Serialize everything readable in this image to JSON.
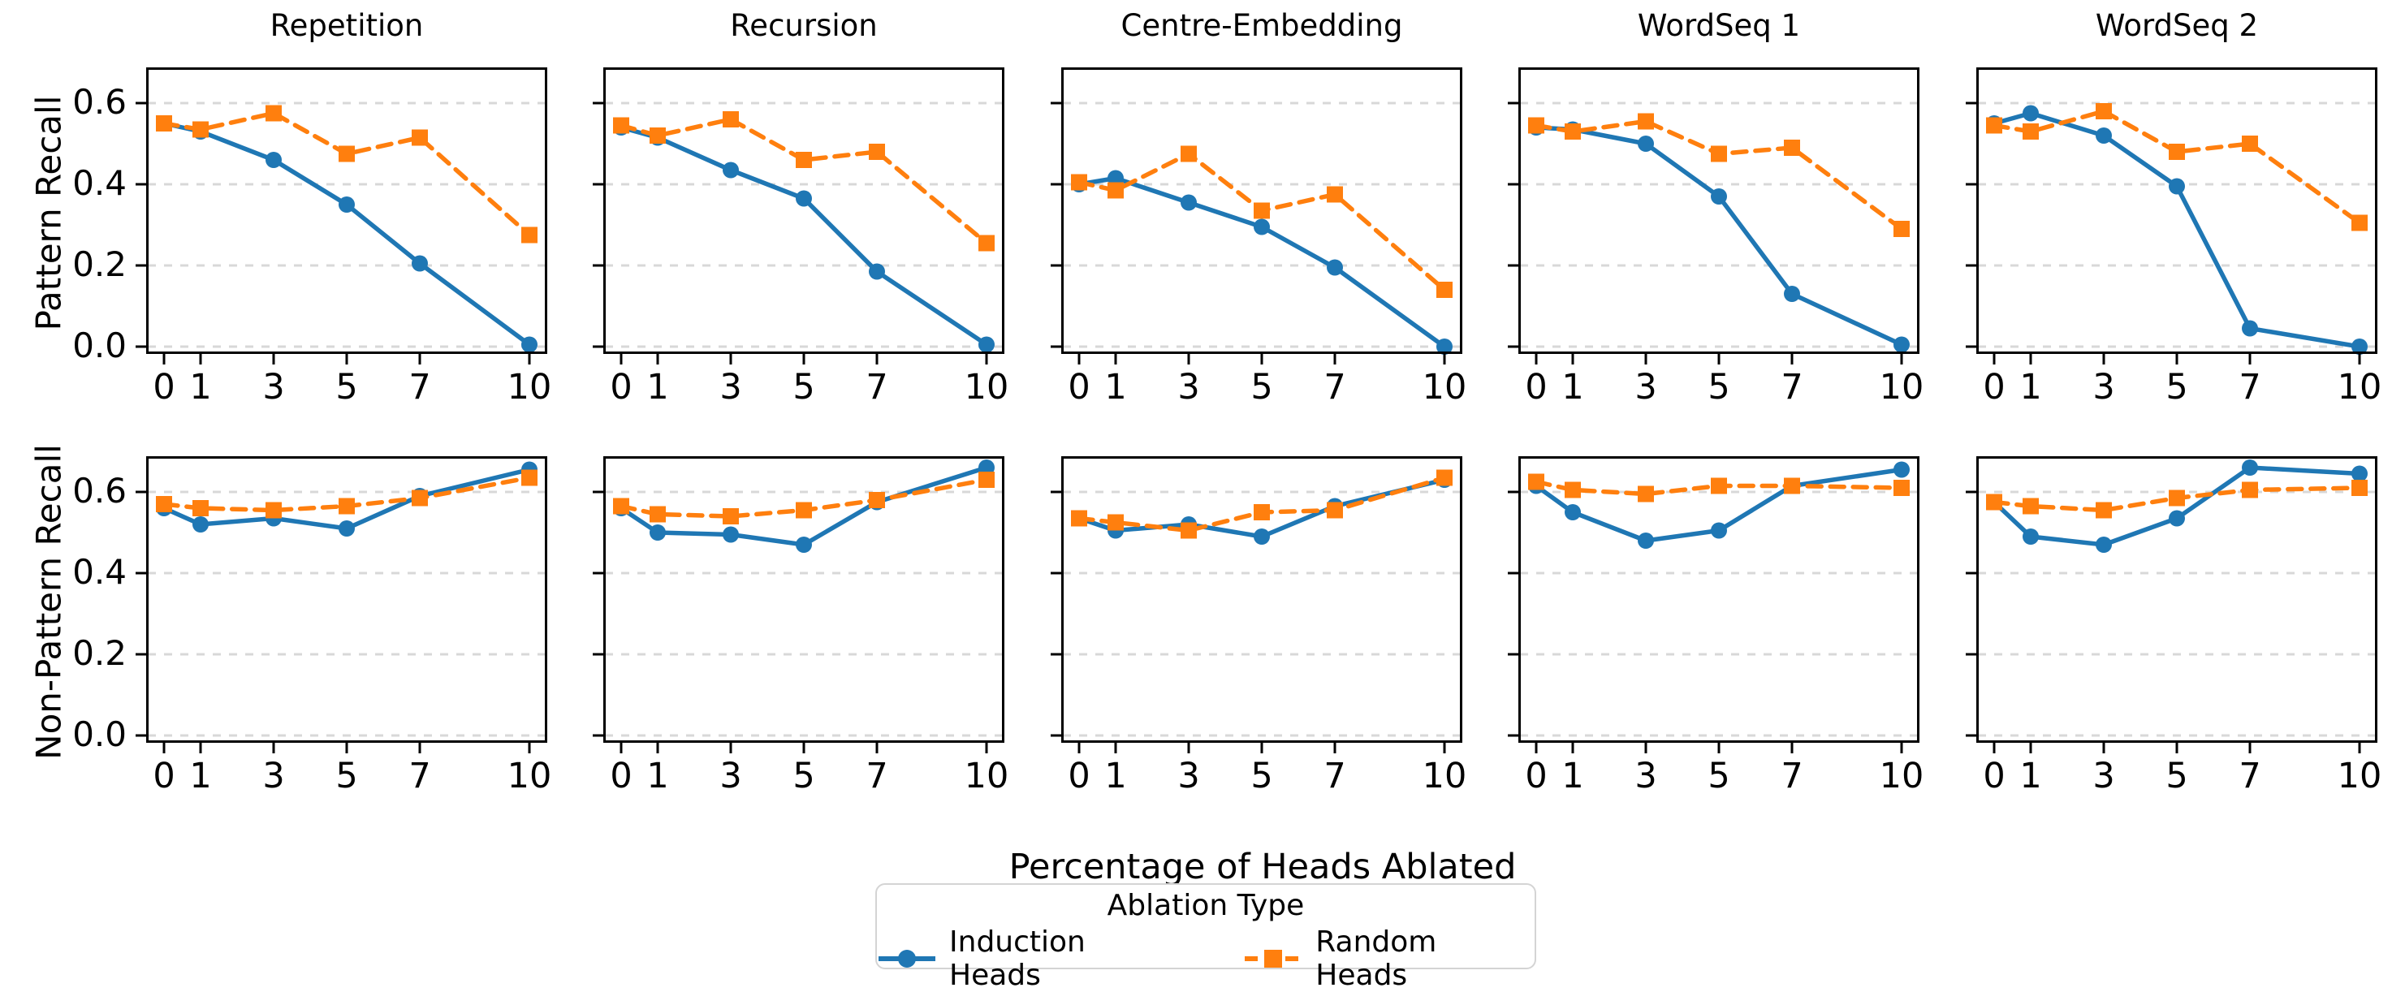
{
  "chart_data": {
    "type": "line",
    "x": [
      0,
      1,
      3,
      5,
      7,
      10
    ],
    "xticklabels": [
      "0",
      "1",
      "3",
      "5",
      "7",
      "10"
    ],
    "yticks": [
      0.0,
      0.2,
      0.4,
      0.6
    ],
    "yticklabels": [
      "0.0",
      "0.2",
      "0.4",
      "0.6"
    ],
    "ylim": [
      -0.018,
      0.688
    ],
    "grid": "horizontal-dashed",
    "xlabel": "Percentage of Heads Ablated",
    "col_titles": [
      "Repetition",
      "Recursion",
      "Centre-Embedding",
      "WordSeq 1",
      "WordSeq 2"
    ],
    "rows": [
      {
        "ylabel": "Pattern Recall",
        "panels": [
          {
            "title": "Repetition",
            "series": [
              {
                "name": "Induction Heads",
                "values": [
                  0.55,
                  0.53,
                  0.46,
                  0.35,
                  0.205,
                  0.005
                ]
              },
              {
                "name": "Random Heads",
                "values": [
                  0.55,
                  0.535,
                  0.575,
                  0.475,
                  0.515,
                  0.275
                ]
              }
            ]
          },
          {
            "title": "Recursion",
            "series": [
              {
                "name": "Induction Heads",
                "values": [
                  0.54,
                  0.515,
                  0.435,
                  0.365,
                  0.185,
                  0.005
                ]
              },
              {
                "name": "Random Heads",
                "values": [
                  0.545,
                  0.52,
                  0.56,
                  0.46,
                  0.48,
                  0.255
                ]
              }
            ]
          },
          {
            "title": "Centre-Embedding",
            "series": [
              {
                "name": "Induction Heads",
                "values": [
                  0.4,
                  0.415,
                  0.355,
                  0.295,
                  0.195,
                  0.0
                ]
              },
              {
                "name": "Random Heads",
                "values": [
                  0.405,
                  0.385,
                  0.475,
                  0.335,
                  0.375,
                  0.14
                ]
              }
            ]
          },
          {
            "title": "WordSeq 1",
            "series": [
              {
                "name": "Induction Heads",
                "values": [
                  0.54,
                  0.535,
                  0.5,
                  0.37,
                  0.13,
                  0.005
                ]
              },
              {
                "name": "Random Heads",
                "values": [
                  0.545,
                  0.53,
                  0.555,
                  0.475,
                  0.49,
                  0.29
                ]
              }
            ]
          },
          {
            "title": "WordSeq 2",
            "series": [
              {
                "name": "Induction Heads",
                "values": [
                  0.55,
                  0.575,
                  0.52,
                  0.395,
                  0.045,
                  0.0
                ]
              },
              {
                "name": "Random Heads",
                "values": [
                  0.545,
                  0.53,
                  0.58,
                  0.48,
                  0.5,
                  0.305
                ]
              }
            ]
          }
        ]
      },
      {
        "ylabel": "Non-Pattern Recall",
        "panels": [
          {
            "title": "Repetition",
            "series": [
              {
                "name": "Induction Heads",
                "values": [
                  0.56,
                  0.52,
                  0.535,
                  0.51,
                  0.59,
                  0.655
                ]
              },
              {
                "name": "Random Heads",
                "values": [
                  0.57,
                  0.56,
                  0.555,
                  0.565,
                  0.585,
                  0.635
                ]
              }
            ]
          },
          {
            "title": "Recursion",
            "series": [
              {
                "name": "Induction Heads",
                "values": [
                  0.56,
                  0.5,
                  0.495,
                  0.47,
                  0.575,
                  0.66
                ]
              },
              {
                "name": "Random Heads",
                "values": [
                  0.565,
                  0.545,
                  0.54,
                  0.555,
                  0.58,
                  0.63
                ]
              }
            ]
          },
          {
            "title": "Centre-Embedding",
            "series": [
              {
                "name": "Induction Heads",
                "values": [
                  0.535,
                  0.505,
                  0.52,
                  0.49,
                  0.565,
                  0.63
                ]
              },
              {
                "name": "Random Heads",
                "values": [
                  0.535,
                  0.525,
                  0.505,
                  0.55,
                  0.555,
                  0.635
                ]
              }
            ]
          },
          {
            "title": "WordSeq 1",
            "series": [
              {
                "name": "Induction Heads",
                "values": [
                  0.615,
                  0.55,
                  0.48,
                  0.505,
                  0.615,
                  0.655
                ]
              },
              {
                "name": "Random Heads",
                "values": [
                  0.625,
                  0.605,
                  0.595,
                  0.615,
                  0.615,
                  0.61
                ]
              }
            ]
          },
          {
            "title": "WordSeq 2",
            "series": [
              {
                "name": "Induction Heads",
                "values": [
                  0.575,
                  0.49,
                  0.47,
                  0.535,
                  0.66,
                  0.645
                ]
              },
              {
                "name": "Random Heads",
                "values": [
                  0.575,
                  0.565,
                  0.555,
                  0.585,
                  0.605,
                  0.61
                ]
              }
            ]
          }
        ]
      }
    ],
    "legend": {
      "title": "Ablation Type",
      "entries": [
        {
          "label": "Induction Heads",
          "color": "#1f77b4",
          "marker": "circle",
          "line": "solid"
        },
        {
          "label": "Random Heads",
          "color": "#ff7f0e",
          "marker": "square",
          "line": "dashed"
        }
      ],
      "position": "bottom-center"
    },
    "colors": {
      "induction": "#1f77b4",
      "random": "#ff7f0e",
      "gridline": "#d8d8d8",
      "spine": "#000000"
    }
  }
}
